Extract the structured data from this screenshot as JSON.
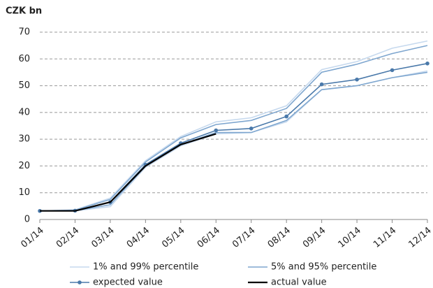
{
  "chart_data": {
    "type": "line",
    "title": "CZK bn",
    "categories": [
      "01/14",
      "02/14",
      "03/14",
      "04/14",
      "05/14",
      "06/14",
      "07/14",
      "08/14",
      "09/14",
      "10/14",
      "11/14",
      "12/14"
    ],
    "ylim": [
      0,
      70
    ],
    "yticks": [
      0,
      10,
      20,
      30,
      40,
      50,
      60,
      70
    ],
    "grid": true,
    "series": [
      {
        "name": "1% and 99% percentile",
        "color": "#c6d9ee",
        "band": true,
        "upper": [
          3.2,
          3.6,
          8,
          22,
          31,
          36.5,
          38,
          42.5,
          56,
          59,
          64,
          66.7
        ],
        "lower": [
          3.2,
          3.2,
          4.8,
          19.5,
          27.5,
          32,
          32.5,
          36.5,
          48.5,
          50,
          53,
          55.5
        ]
      },
      {
        "name": "5% and 95% percentile",
        "color": "#7ea6cf",
        "band": true,
        "upper": [
          3.2,
          3.5,
          7.5,
          21.5,
          30.5,
          35.5,
          37,
          41.5,
          55,
          58,
          62,
          65
        ],
        "lower": [
          3.2,
          3.3,
          5.5,
          20,
          28,
          32.5,
          32.5,
          37,
          48.5,
          50,
          53,
          55
        ]
      },
      {
        "name": "expected value",
        "color": "#4a79aa",
        "markers": true,
        "values": [
          3.2,
          3.3,
          6.5,
          20.5,
          28.5,
          33.3,
          34,
          38.5,
          50.5,
          52.3,
          55.8,
          58.3
        ]
      },
      {
        "name": "actual value",
        "color": "#000000",
        "values": [
          3.2,
          3.2,
          6.5,
          20,
          28,
          32,
          null,
          null,
          null,
          null,
          null,
          null
        ]
      }
    ]
  }
}
